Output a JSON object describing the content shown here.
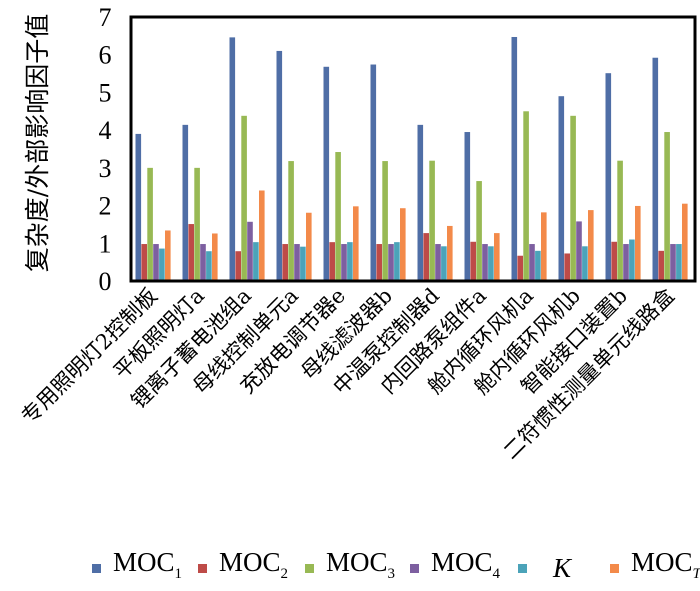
{
  "chart_data": {
    "type": "bar",
    "title": "",
    "xlabel": "",
    "ylabel": "复杂度/外部影响因子值",
    "ylim": [
      0,
      7
    ],
    "yticks": [
      "0",
      "1",
      "2",
      "3",
      "4",
      "5",
      "6",
      "7"
    ],
    "grid": false,
    "legend_position": "bottom",
    "categories": [
      "专用照明灯2控制板",
      "平板照明灯a",
      "锂离子蓄电池组a",
      "母线控制单元a",
      "充放电调节器e",
      "母线滤波器b",
      "中温泵控制器d",
      "内回路泵组件a",
      "舱内循环风机a",
      "舱内循环风机b",
      "智能接口装置b",
      "二符惯性测量单元线路盒"
    ],
    "series": [
      {
        "name": "MOC1",
        "label_main": "MOC",
        "label_sub": "1",
        "italic": false,
        "color": "#4F6EA6",
        "values": [
          3.9,
          4.14,
          6.46,
          6.1,
          5.68,
          5.74,
          4.14,
          3.95,
          6.47,
          4.9,
          5.51,
          5.92
        ]
      },
      {
        "name": "MOC2",
        "label_main": "MOC",
        "label_sub": "2",
        "italic": false,
        "color": "#BE4B48",
        "values": [
          0.98,
          1.51,
          0.79,
          0.98,
          1.03,
          0.98,
          1.27,
          1.04,
          0.67,
          0.73,
          1.04,
          0.8
        ]
      },
      {
        "name": "MOC3",
        "label_main": "MOC",
        "label_sub": "3",
        "italic": false,
        "color": "#98B954",
        "values": [
          3.0,
          3.0,
          4.38,
          3.18,
          3.42,
          3.18,
          3.19,
          2.65,
          4.5,
          4.38,
          3.19,
          3.95
        ]
      },
      {
        "name": "MOC4",
        "label_main": "MOC",
        "label_sub": "4",
        "italic": false,
        "color": "#7D5FA0",
        "values": [
          0.98,
          0.98,
          1.57,
          0.98,
          0.98,
          0.98,
          0.98,
          0.98,
          0.98,
          1.58,
          0.98,
          0.98
        ]
      },
      {
        "name": "K",
        "label_main": "K",
        "label_sub": "",
        "italic": true,
        "color": "#4BA3B9",
        "values": [
          0.86,
          0.79,
          1.03,
          0.91,
          1.03,
          1.03,
          0.92,
          0.92,
          0.8,
          0.92,
          1.1,
          0.98
        ]
      },
      {
        "name": "MOCT",
        "label_main": "MOC",
        "label_sub": "T",
        "italic": false,
        "sub_italic": true,
        "color": "#F38A4A",
        "values": [
          1.34,
          1.26,
          2.4,
          1.81,
          1.98,
          1.93,
          1.46,
          1.27,
          1.82,
          1.88,
          1.99,
          2.05
        ]
      }
    ]
  }
}
